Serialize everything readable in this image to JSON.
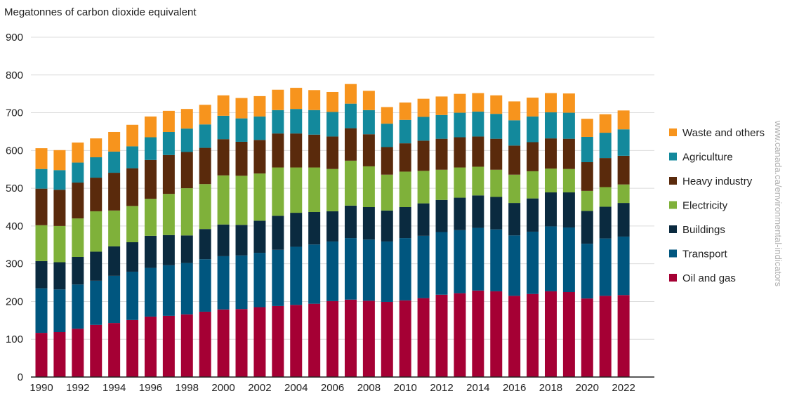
{
  "chart_data": {
    "type": "bar",
    "stacked": true,
    "title": "",
    "ylabel": "Megatonnes of carbon dioxide equivalent",
    "xlabel": "",
    "ylim": [
      0,
      900
    ],
    "yticks": [
      0,
      100,
      200,
      300,
      400,
      500,
      600,
      700,
      800,
      900
    ],
    "xtick_labels": [
      "1990",
      "1992",
      "1994",
      "1996",
      "1998",
      "2000",
      "2002",
      "2004",
      "2006",
      "2008",
      "2010",
      "2012",
      "2014",
      "2016",
      "2018",
      "2020",
      "2022"
    ],
    "grid": true,
    "legend_position": "right",
    "categories": [
      "1990",
      "1991",
      "1992",
      "1993",
      "1994",
      "1995",
      "1996",
      "1997",
      "1998",
      "1999",
      "2000",
      "2001",
      "2002",
      "2003",
      "2004",
      "2005",
      "2006",
      "2007",
      "2008",
      "2009",
      "2010",
      "2011",
      "2012",
      "2013",
      "2014",
      "2015",
      "2016",
      "2017",
      "2018",
      "2019",
      "2020",
      "2021",
      "2022"
    ],
    "series": [
      {
        "name": "Oil and gas",
        "color": "#a50034",
        "values": [
          117,
          119,
          128,
          138,
          143,
          151,
          160,
          162,
          166,
          173,
          179,
          180,
          185,
          188,
          191,
          194,
          201,
          205,
          202,
          199,
          203,
          209,
          218,
          222,
          229,
          227,
          215,
          220,
          227,
          225,
          208,
          215,
          217
        ]
      },
      {
        "name": "Transport",
        "color": "#00567f",
        "values": [
          118,
          113,
          117,
          117,
          125,
          128,
          129,
          134,
          136,
          139,
          141,
          142,
          144,
          149,
          154,
          157,
          158,
          163,
          162,
          160,
          165,
          165,
          166,
          167,
          166,
          164,
          160,
          165,
          172,
          171,
          145,
          152,
          155
        ]
      },
      {
        "name": "Buildings",
        "color": "#0a2a3f",
        "values": [
          72,
          72,
          73,
          77,
          78,
          78,
          85,
          80,
          73,
          80,
          84,
          81,
          85,
          90,
          90,
          86,
          80,
          86,
          86,
          82,
          82,
          86,
          85,
          86,
          86,
          86,
          86,
          88,
          90,
          93,
          87,
          84,
          89
        ]
      },
      {
        "name": "Electricity",
        "color": "#7fb13a",
        "values": [
          95,
          96,
          102,
          107,
          95,
          96,
          98,
          109,
          125,
          119,
          130,
          130,
          125,
          128,
          120,
          118,
          112,
          119,
          108,
          95,
          94,
          86,
          80,
          80,
          76,
          72,
          75,
          72,
          63,
          62,
          53,
          52,
          49
        ]
      },
      {
        "name": "Heavy industry",
        "color": "#5a2a0c",
        "values": [
          97,
          96,
          95,
          89,
          100,
          100,
          103,
          103,
          96,
          96,
          96,
          90,
          89,
          90,
          90,
          87,
          86,
          86,
          85,
          73,
          75,
          80,
          82,
          80,
          80,
          82,
          77,
          77,
          80,
          80,
          76,
          77,
          76
        ]
      },
      {
        "name": "Agriculture",
        "color": "#13899c",
        "values": [
          52,
          52,
          53,
          54,
          56,
          58,
          60,
          61,
          62,
          62,
          62,
          62,
          62,
          62,
          65,
          65,
          65,
          65,
          64,
          62,
          62,
          63,
          63,
          65,
          66,
          66,
          67,
          68,
          69,
          69,
          67,
          67,
          70
        ]
      },
      {
        "name": "Waste and others",
        "color": "#f7941d",
        "values": [
          55,
          53,
          53,
          50,
          52,
          57,
          55,
          56,
          52,
          52,
          54,
          54,
          54,
          54,
          56,
          53,
          53,
          52,
          51,
          44,
          46,
          48,
          49,
          50,
          49,
          49,
          50,
          50,
          51,
          51,
          48,
          49,
          50
        ]
      }
    ]
  },
  "legend_order": [
    "Waste and others",
    "Agriculture",
    "Heavy industry",
    "Electricity",
    "Buildings",
    "Transport",
    "Oil and gas"
  ],
  "watermark": "www.canada.ca/environmental-indicators"
}
